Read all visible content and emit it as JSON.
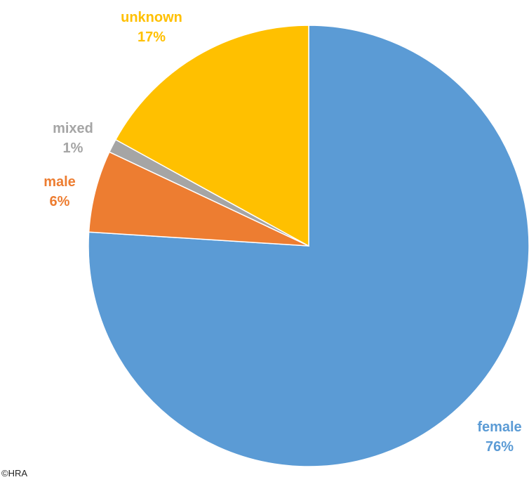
{
  "chart_data": {
    "type": "pie",
    "start_angle_deg": 0,
    "direction": "clockwise",
    "slices": [
      {
        "label": "female",
        "value": 76,
        "value_label": "76%",
        "color": "#5B9BD5"
      },
      {
        "label": "male",
        "value": 6,
        "value_label": "6%",
        "color": "#ED7D31"
      },
      {
        "label": "mixed",
        "value": 1,
        "value_label": "1%",
        "color": "#A5A5A5"
      },
      {
        "label": "unknown",
        "value": 17,
        "value_label": "17%",
        "color": "#FFC000"
      }
    ],
    "title": "",
    "legend": "none",
    "data_labels": "outside"
  },
  "footer": {
    "copyright": "©HRA"
  }
}
